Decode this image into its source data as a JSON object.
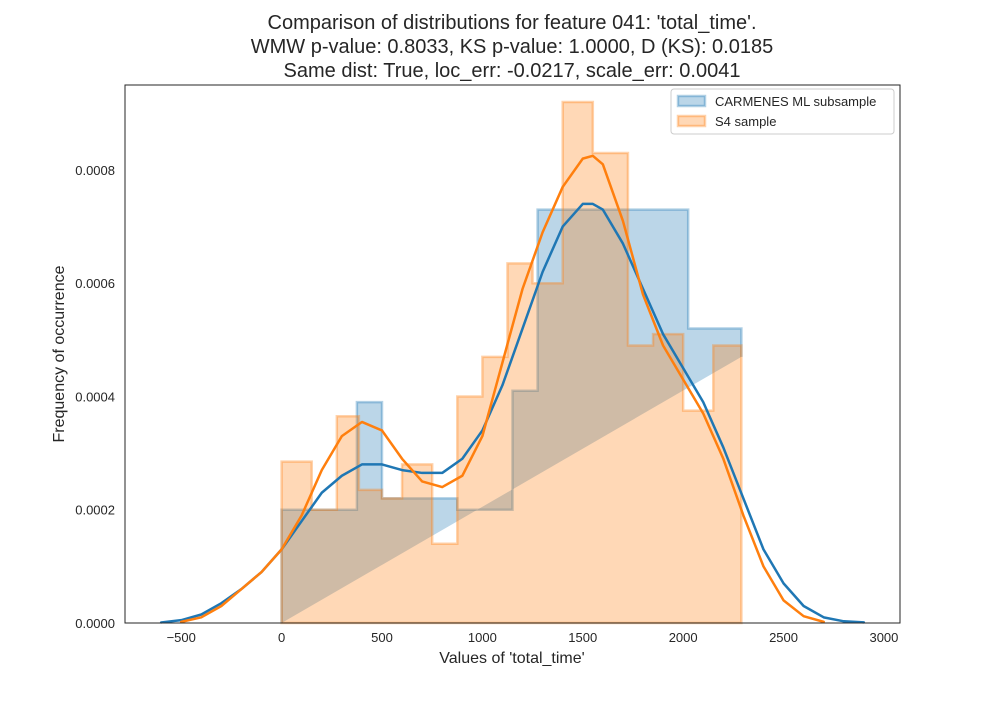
{
  "chart_data": {
    "type": "histogram",
    "title_lines": [
      "Comparison of distributions for feature 041: 'total_time'.",
      "WMW p-value: 0.8033, KS p-value: 1.0000, D (KS): 0.0185",
      "Same dist: True, loc_err: -0.0217, scale_err: 0.0041"
    ],
    "xlabel": "Values of 'total_time'",
    "ylabel": "Frequency of occurrence",
    "xlim": [
      -780,
      3080
    ],
    "ylim": [
      0,
      0.00095
    ],
    "x_ticks": [
      -500,
      0,
      500,
      1000,
      1500,
      2000,
      2500,
      3000
    ],
    "x_tick_labels": [
      "−500",
      "0",
      "500",
      "1000",
      "1500",
      "2000",
      "2500",
      "3000"
    ],
    "y_ticks": [
      0,
      0.0002,
      0.0004,
      0.0006,
      0.0008
    ],
    "y_tick_labels": [
      "0.0000",
      "0.0002",
      "0.0004",
      "0.0006",
      "0.0008"
    ],
    "grid": false,
    "legend_position": "top-right",
    "series": [
      {
        "name": "CARMENES ML subsample",
        "color": "#1f77b4",
        "bin_edges": [
          0,
          255,
          375,
          500,
          750,
          875,
          1025,
          1150,
          1275,
          1525,
          1775,
          2025,
          2290
        ],
        "hist_values": [
          0.0002,
          0.0002,
          0.00039,
          0.00022,
          0.00022,
          0.0002,
          0.0002,
          0.00041,
          0.00073,
          0.00073,
          0.00073,
          0.00052,
          0.00047
        ],
        "kde_x": [
          -600,
          -500,
          -400,
          -300,
          -200,
          -100,
          0,
          100,
          200,
          300,
          400,
          500,
          600,
          700,
          800,
          900,
          1000,
          1100,
          1200,
          1300,
          1400,
          1500,
          1550,
          1600,
          1700,
          1800,
          1900,
          2000,
          2100,
          2200,
          2300,
          2400,
          2500,
          2600,
          2700,
          2800,
          2900
        ],
        "kde_y": [
          1e-06,
          5e-06,
          1.5e-05,
          3.5e-05,
          6e-05,
          9e-05,
          0.00013,
          0.00018,
          0.00023,
          0.00026,
          0.00028,
          0.00028,
          0.00027,
          0.000265,
          0.000265,
          0.00029,
          0.00034,
          0.00042,
          0.00052,
          0.00062,
          0.0007,
          0.00074,
          0.00074,
          0.00073,
          0.00067,
          0.00059,
          0.00051,
          0.00045,
          0.00039,
          0.00031,
          0.00022,
          0.00013,
          7e-05,
          3e-05,
          1e-05,
          3e-06,
          1e-06
        ]
      },
      {
        "name": "S4 sample",
        "color": "#ff7f0e",
        "bin_edges": [
          0,
          150,
          275,
          385,
          500,
          600,
          750,
          875,
          1000,
          1125,
          1250,
          1400,
          1550,
          1725,
          1850,
          2000,
          2150,
          2290
        ],
        "hist_values": [
          0.000285,
          0.0002,
          0.000365,
          0.000235,
          0.00022,
          0.00028,
          0.00014,
          0.0004,
          0.00047,
          0.000635,
          0.0006,
          0.00092,
          0.00083,
          0.00049,
          0.00051,
          0.000375,
          0.00049
        ],
        "kde_x": [
          -500,
          -400,
          -300,
          -200,
          -100,
          0,
          100,
          200,
          300,
          400,
          500,
          600,
          700,
          800,
          900,
          1000,
          1100,
          1200,
          1300,
          1400,
          1500,
          1550,
          1600,
          1700,
          1800,
          1900,
          2000,
          2100,
          2200,
          2300,
          2400,
          2500,
          2600,
          2700
        ],
        "kde_y": [
          2e-06,
          1e-05,
          3e-05,
          6e-05,
          9e-05,
          0.00013,
          0.00019,
          0.00027,
          0.00033,
          0.000355,
          0.00034,
          0.00029,
          0.00025,
          0.00024,
          0.00026,
          0.00033,
          0.00046,
          0.00059,
          0.00069,
          0.00077,
          0.00082,
          0.000825,
          0.00081,
          0.00071,
          0.00058,
          0.00049,
          0.00043,
          0.00037,
          0.00029,
          0.00019,
          0.0001,
          4e-05,
          1.2e-05,
          2e-06
        ]
      }
    ]
  }
}
